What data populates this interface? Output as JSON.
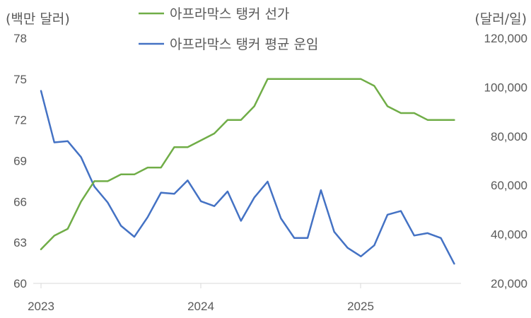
{
  "chart_data": {
    "type": "line",
    "left_unit": "(백만 달러)",
    "right_unit": "(달러/일)",
    "y_left_ticks": [
      "78",
      "75",
      "72",
      "69",
      "66",
      "63",
      "60"
    ],
    "y_right_ticks": [
      "120,000",
      "100,000",
      "80,000",
      "60,000",
      "40,000",
      "20,000"
    ],
    "x_ticks": [
      "2023",
      "2024",
      "2025"
    ],
    "ylim_left": [
      60,
      78
    ],
    "ylim_right": [
      20000,
      120000
    ],
    "xlim": [
      "2023-01",
      "2025-09"
    ],
    "legend_position": "top-center",
    "x": [
      "2023-01",
      "2023-02",
      "2023-03",
      "2023-04",
      "2023-05",
      "2023-06",
      "2023-07",
      "2023-08",
      "2023-09",
      "2023-10",
      "2023-11",
      "2023-12",
      "2024-01",
      "2024-02",
      "2024-03",
      "2024-04",
      "2024-05",
      "2024-06",
      "2024-07",
      "2024-08",
      "2024-09",
      "2024-10",
      "2024-11",
      "2024-12",
      "2025-01",
      "2025-02",
      "2025-03",
      "2025-04",
      "2025-05",
      "2025-06",
      "2025-07",
      "2025-08"
    ],
    "series": [
      {
        "name": "아프라막스 탱커 선가",
        "axis": "left",
        "color": "#70ad47",
        "values": [
          62.5,
          63.5,
          64.0,
          66.0,
          67.5,
          67.5,
          68.0,
          68.0,
          68.5,
          68.5,
          70.0,
          70.0,
          70.5,
          71.0,
          72.0,
          72.0,
          73.0,
          75.0,
          75.0,
          75.0,
          75.0,
          75.0,
          75.0,
          75.0,
          75.0,
          74.5,
          73.0,
          72.5,
          72.5,
          72.0,
          72.0,
          72.0
        ]
      },
      {
        "name": "아프라막스 탱커 평균 운임",
        "axis": "right",
        "color": "#4472c4",
        "values": [
          98500,
          77500,
          78000,
          71500,
          59500,
          53000,
          43500,
          39000,
          47000,
          57000,
          56500,
          62000,
          53500,
          51500,
          57500,
          45500,
          55000,
          61500,
          46500,
          38500,
          38500,
          58000,
          41000,
          34500,
          31000,
          35500,
          48000,
          49500,
          39500,
          40500,
          38500,
          28000
        ]
      }
    ]
  }
}
